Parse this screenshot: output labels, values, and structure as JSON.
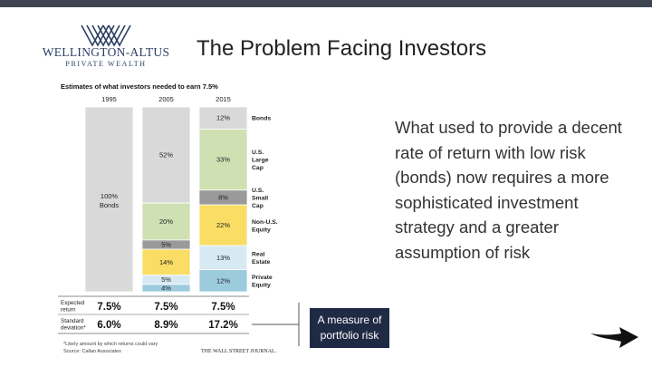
{
  "slide": {
    "title": "The Problem Facing Investors",
    "logo_name": "WELLINGTON-ALTUS",
    "logo_sub": "PRIVATE WEALTH",
    "body_text": "What used to provide a decent rate of return with low risk (bonds) now requires a more sophisticated investment strategy and a greater assumption of risk",
    "callout_text": "A measure of portfolio risk",
    "arrow_icon": "right-arrow-icon"
  },
  "chart_data": {
    "type": "bar",
    "stacked": true,
    "title": "Estimates of what investors needed to earn 7.5%",
    "categories": [
      "1995",
      "2005",
      "2015"
    ],
    "series": [
      {
        "name": "Bonds",
        "values": [
          100,
          52,
          12
        ],
        "color": "#d9d9d9"
      },
      {
        "name": "U.S. Large Cap",
        "values": [
          0,
          20,
          33
        ],
        "color": "#cfe0b2"
      },
      {
        "name": "U.S. Small Cap",
        "values": [
          0,
          5,
          8
        ],
        "color": "#9a9a9a"
      },
      {
        "name": "Non-U.S. Equity",
        "values": [
          0,
          14,
          22
        ],
        "color": "#f9dd64"
      },
      {
        "name": "Real Estate",
        "values": [
          0,
          5,
          13
        ],
        "color": "#d7eaf3"
      },
      {
        "name": "Private Equity",
        "values": [
          0,
          4,
          12
        ],
        "color": "#9ccbde"
      }
    ],
    "segment_labels": [
      [
        "100%",
        "",
        "",
        "",
        "",
        ""
      ],
      [
        "52%",
        "20%",
        "5%",
        "14%",
        "5%",
        "4%"
      ],
      [
        "12%",
        "33%",
        "8%",
        "22%",
        "13%",
        "12%"
      ]
    ],
    "inner_label_1995": "Bonds",
    "legend_labels": [
      [
        "Bonds"
      ],
      [
        "U.S.",
        "Large",
        "Cap"
      ],
      [
        "U.S.",
        "Small",
        "Cap"
      ],
      [
        "Non-U.S.",
        "Equity"
      ],
      [
        "Real",
        "Estate"
      ],
      [
        "Private",
        "Equity"
      ]
    ],
    "stats": [
      {
        "label": [
          "Expected",
          "return"
        ],
        "values": [
          "7.5%",
          "7.5%",
          "7.5%"
        ]
      },
      {
        "label": [
          "Standard",
          "deviation*"
        ],
        "values": [
          "6.0%",
          "8.9%",
          "17.2%"
        ]
      }
    ],
    "footnote": "*Likely amount by which returns could vary",
    "source": "Source: Callan Associates",
    "publisher": "THE WALL STREET JOURNAL."
  }
}
